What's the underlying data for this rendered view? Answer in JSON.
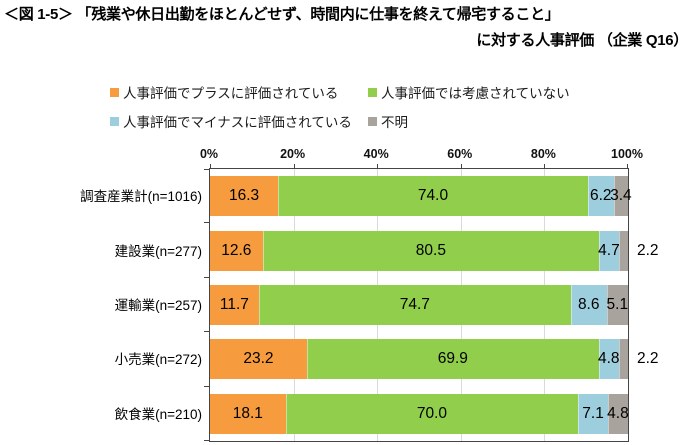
{
  "title": {
    "line1": "＜図 1-5＞ 「残業や休日出勤をほとんどせず、時間内に仕事を終えて帰宅すること」",
    "line2": "に対する人事評価 （企業 Q16）"
  },
  "colors": {
    "plus": "#F79B3F",
    "not_considered": "#90CE4B",
    "minus": "#9DCEDD",
    "unknown": "#A8A39C",
    "gridline": "#DADADA",
    "frame": "#454545"
  },
  "legend": {
    "items": [
      {
        "label": "人事評価でプラスに評価されている",
        "color": "#F79B3F"
      },
      {
        "label": "人事評価では考慮されていない",
        "color": "#90CE4B"
      },
      {
        "label": "人事評価でマイナスに評価されている",
        "color": "#9DCEDD"
      },
      {
        "label": "不明",
        "color": "#A8A39C"
      }
    ]
  },
  "chart_data": {
    "type": "bar",
    "orientation": "horizontal",
    "stacked": true,
    "title": "＜図 1-5＞ 「残業や休日出勤をほとんどせず、時間内に仕事を終えて帰宅すること」に対する人事評価 （企業 Q16）",
    "categories": [
      "調査産業計(n=1016)",
      "建設業(n=277)",
      "運輸業(n=257)",
      "小売業(n=272)",
      "飲食業(n=210)"
    ],
    "series": [
      {
        "name": "人事評価でプラスに評価されている",
        "color": "#F79B3F",
        "values": [
          16.3,
          12.6,
          11.7,
          23.2,
          18.1
        ]
      },
      {
        "name": "人事評価では考慮されていない",
        "color": "#90CE4B",
        "values": [
          74.0,
          80.5,
          74.7,
          69.9,
          70.0
        ]
      },
      {
        "name": "人事評価でマイナスに評価されている",
        "color": "#9DCEDD",
        "values": [
          6.2,
          4.7,
          8.6,
          4.8,
          7.1
        ]
      },
      {
        "name": "不明",
        "color": "#A8A39C",
        "values": [
          3.4,
          2.2,
          5.1,
          2.2,
          4.8
        ]
      }
    ],
    "x_axis": {
      "min": 0,
      "max": 100,
      "ticks": [
        "0%",
        "20%",
        "40%",
        "60%",
        "80%",
        "100%"
      ],
      "position": "top"
    },
    "grid": true,
    "legend_position": "top",
    "value_labels": "inside-center, placed outside right of plot when segment < 3%"
  }
}
